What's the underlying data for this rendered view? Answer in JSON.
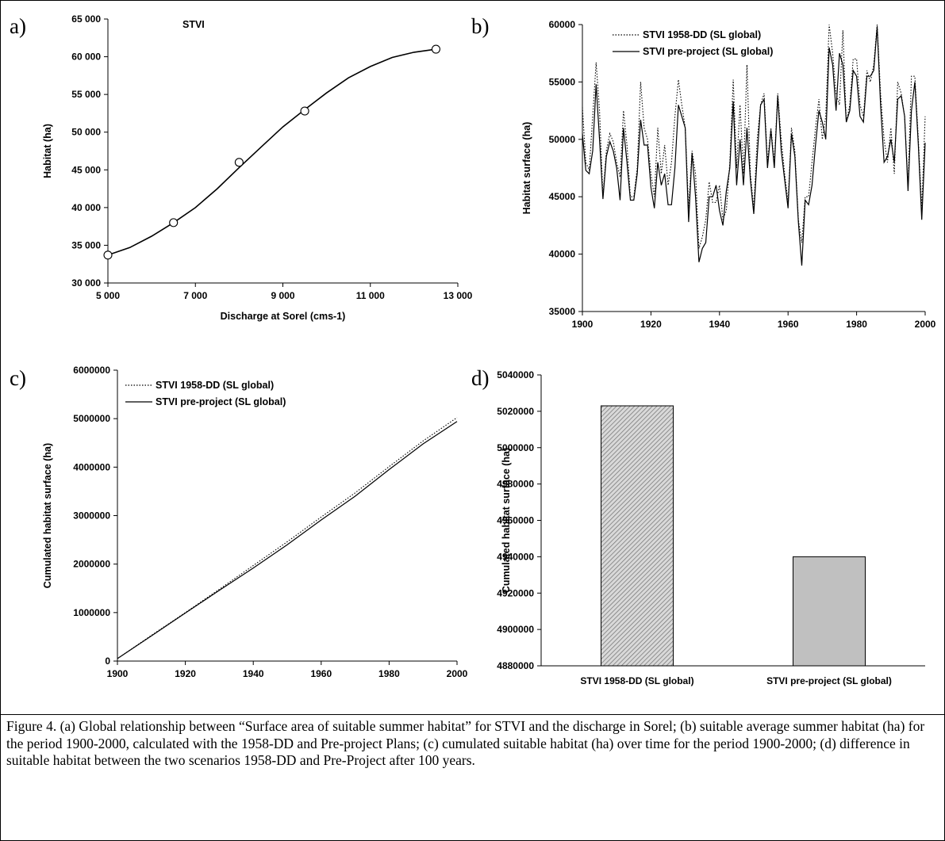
{
  "panel_labels": {
    "a": "a)",
    "b": "b)",
    "c": "c)",
    "d": "d)"
  },
  "caption": "Figure 4. (a) Global relationship between “Surface area of suitable summer habitat” for STVI and the discharge in Sorel; (b) suitable average summer habitat (ha) for the period 1900-2000, calculated with the 1958-DD and Pre-project Plans; (c) cumulated suitable habitat (ha) over time for the period 1900-2000; (d) difference in suitable habitat between the two scenarios 1958-DD and Pre-Project after 100 years.",
  "chart_data": [
    {
      "panel": "a",
      "type": "scatter",
      "title": "STVI",
      "xlabel": "Discharge at Sorel (cms-1)",
      "ylabel": "Habitat (ha)",
      "xlim": [
        5000,
        13000
      ],
      "ylim": [
        30000,
        65000
      ],
      "xticks": [
        "5 000",
        "7 000",
        "9 000",
        "11 000",
        "13 000"
      ],
      "yticks": [
        "30 000",
        "35 000",
        "40 000",
        "45 000",
        "50 000",
        "55 000",
        "60 000",
        "65 000"
      ],
      "points": [
        [
          5000,
          33700
        ],
        [
          6500,
          38000
        ],
        [
          8000,
          46000
        ],
        [
          9500,
          52800
        ],
        [
          12500,
          61000
        ]
      ],
      "fit_curve": [
        [
          5000,
          33700
        ],
        [
          5500,
          34700
        ],
        [
          6000,
          36200
        ],
        [
          6500,
          38000
        ],
        [
          7000,
          40000
        ],
        [
          7500,
          42500
        ],
        [
          8000,
          45300
        ],
        [
          8500,
          48000
        ],
        [
          9000,
          50700
        ],
        [
          9500,
          53000
        ],
        [
          10000,
          55200
        ],
        [
          10500,
          57200
        ],
        [
          11000,
          58700
        ],
        [
          11500,
          59900
        ],
        [
          12000,
          60600
        ],
        [
          12500,
          61000
        ]
      ]
    },
    {
      "panel": "b",
      "type": "line",
      "xlabel": "",
      "ylabel": "Habitat surface (ha)",
      "xlim": [
        1900,
        2000
      ],
      "ylim": [
        35000,
        60000
      ],
      "xticks": [
        "1900",
        "1920",
        "1940",
        "1960",
        "1980",
        "2000"
      ],
      "yticks": [
        "35000",
        "40000",
        "45000",
        "50000",
        "55000",
        "60000"
      ],
      "legend_position": "top-left",
      "series": [
        {
          "name": "STVI 1958-DD (SL global)",
          "style": "dotted",
          "x": [
            1900,
            1901,
            1902,
            1903,
            1904,
            1905,
            1906,
            1907,
            1908,
            1909,
            1910,
            1911,
            1912,
            1913,
            1914,
            1915,
            1916,
            1917,
            1918,
            1919,
            1920,
            1921,
            1922,
            1923,
            1924,
            1925,
            1926,
            1927,
            1928,
            1929,
            1930,
            1931,
            1932,
            1933,
            1934,
            1935,
            1936,
            1937,
            1938,
            1939,
            1940,
            1941,
            1942,
            1943,
            1944,
            1945,
            1946,
            1947,
            1948,
            1949,
            1950,
            1951,
            1952,
            1953,
            1954,
            1955,
            1956,
            1957,
            1958,
            1959,
            1960,
            1961,
            1962,
            1963,
            1964,
            1965,
            1966,
            1967,
            1968,
            1969,
            1970,
            1971,
            1972,
            1973,
            1974,
            1975,
            1976,
            1977,
            1978,
            1979,
            1980,
            1981,
            1982,
            1983,
            1984,
            1985,
            1986,
            1987,
            1988,
            1989,
            1990,
            1991,
            1992,
            1993,
            1994,
            1995,
            1996,
            1997,
            1998,
            1999,
            2000
          ],
          "values": [
            52800,
            48000,
            47300,
            52000,
            56700,
            52500,
            45000,
            49000,
            50500,
            49800,
            48000,
            46700,
            52500,
            49500,
            45000,
            45000,
            47500,
            55000,
            51000,
            50000,
            47000,
            45000,
            51000,
            47000,
            49500,
            46000,
            48000,
            52000,
            55200,
            53000,
            51000,
            44000,
            49000,
            47000,
            40500,
            41500,
            43000,
            46300,
            44500,
            44500,
            46000,
            43000,
            43800,
            48000,
            55200,
            47500,
            53000,
            47000,
            56500,
            47000,
            44000,
            50000,
            53000,
            54000,
            48000,
            51000,
            48000,
            54000,
            50000,
            47000,
            44500,
            51000,
            49000,
            43000,
            41000,
            45000,
            45000,
            48000,
            51000,
            53500,
            50000,
            52000,
            60000,
            57500,
            54000,
            53000,
            59500,
            51500,
            53000,
            57000,
            57000,
            53000,
            52000,
            56000,
            55000,
            56500,
            60000,
            54000,
            50000,
            48000,
            51000,
            47000,
            55000,
            54000,
            52000,
            46000,
            55500,
            55500,
            50000,
            44000,
            52000
          ]
        },
        {
          "name": "STVI pre-project (SL global)",
          "style": "solid",
          "x": [
            1900,
            1901,
            1902,
            1903,
            1904,
            1905,
            1906,
            1907,
            1908,
            1909,
            1910,
            1911,
            1912,
            1913,
            1914,
            1915,
            1916,
            1917,
            1918,
            1919,
            1920,
            1921,
            1922,
            1923,
            1924,
            1925,
            1926,
            1927,
            1928,
            1929,
            1930,
            1931,
            1932,
            1933,
            1934,
            1935,
            1936,
            1937,
            1938,
            1939,
            1940,
            1941,
            1942,
            1943,
            1944,
            1945,
            1946,
            1947,
            1948,
            1949,
            1950,
            1951,
            1952,
            1953,
            1954,
            1955,
            1956,
            1957,
            1958,
            1959,
            1960,
            1961,
            1962,
            1963,
            1964,
            1965,
            1966,
            1967,
            1968,
            1969,
            1970,
            1971,
            1972,
            1973,
            1974,
            1975,
            1976,
            1977,
            1978,
            1979,
            1980,
            1981,
            1982,
            1983,
            1984,
            1985,
            1986,
            1987,
            1988,
            1989,
            1990,
            1991,
            1992,
            1993,
            1994,
            1995,
            1996,
            1997,
            1998,
            1999,
            2000
          ],
          "values": [
            50500,
            47300,
            47000,
            49000,
            54800,
            50000,
            44800,
            48500,
            49800,
            49000,
            47500,
            44700,
            51000,
            48000,
            44700,
            44700,
            47000,
            51700,
            49500,
            49500,
            45800,
            44000,
            48000,
            46000,
            47000,
            44300,
            44300,
            47500,
            53000,
            52000,
            51000,
            42800,
            48800,
            45000,
            39300,
            40500,
            41000,
            45000,
            45000,
            46000,
            43800,
            42500,
            45500,
            47500,
            53300,
            46000,
            50000,
            46000,
            51000,
            46500,
            43500,
            48500,
            53000,
            53500,
            47500,
            50800,
            47500,
            53800,
            49000,
            46500,
            44000,
            50500,
            48500,
            42800,
            39000,
            44700,
            44300,
            46000,
            49500,
            52500,
            51500,
            50000,
            58000,
            56500,
            52500,
            57500,
            56500,
            51500,
            52500,
            56000,
            55500,
            52000,
            51500,
            55500,
            55500,
            56000,
            59800,
            53000,
            48000,
            48500,
            50000,
            48000,
            53500,
            53800,
            52000,
            45500,
            52500,
            55000,
            49500,
            43000,
            49700
          ]
        }
      ]
    },
    {
      "panel": "c",
      "type": "line",
      "xlabel": "",
      "ylabel": "Cumulated habitat surface (ha)",
      "xlim": [
        1900,
        2000
      ],
      "ylim": [
        0,
        6000000
      ],
      "xticks": [
        "1900",
        "1920",
        "1940",
        "1960",
        "1980",
        "2000"
      ],
      "yticks": [
        "0",
        "1000000",
        "2000000",
        "3000000",
        "4000000",
        "5000000",
        "6000000"
      ],
      "legend_position": "top-left",
      "series": [
        {
          "name": "STVI 1958-DD (SL global)",
          "style": "dotted",
          "x": [
            1900,
            1910,
            1920,
            1930,
            1940,
            1950,
            1960,
            1970,
            1980,
            1990,
            2000
          ],
          "values": [
            50000,
            530000,
            1000000,
            1480000,
            1970000,
            2460000,
            2970000,
            3470000,
            4010000,
            4540000,
            5023000
          ]
        },
        {
          "name": "STVI pre-project (SL global)",
          "style": "solid",
          "x": [
            1900,
            1910,
            1920,
            1930,
            1940,
            1950,
            1960,
            1970,
            1980,
            1990,
            2000
          ],
          "values": [
            50000,
            520000,
            990000,
            1460000,
            1920000,
            2400000,
            2910000,
            3400000,
            3950000,
            4480000,
            4940000
          ]
        }
      ]
    },
    {
      "panel": "d",
      "type": "bar",
      "xlabel": "",
      "ylabel": "Cumulated habitat surface (ha)",
      "ylim": [
        4880000,
        5040000
      ],
      "yticks": [
        "4880000",
        "4900000",
        "4920000",
        "4940000",
        "4960000",
        "4980000",
        "5000000",
        "5020000",
        "5040000"
      ],
      "categories": [
        "STVI 1958-DD (SL global)",
        "STVI pre-project (SL global)"
      ],
      "values": [
        5023000,
        4940000
      ],
      "bar_fills": [
        "hatched",
        "#c0c0c0"
      ]
    }
  ]
}
